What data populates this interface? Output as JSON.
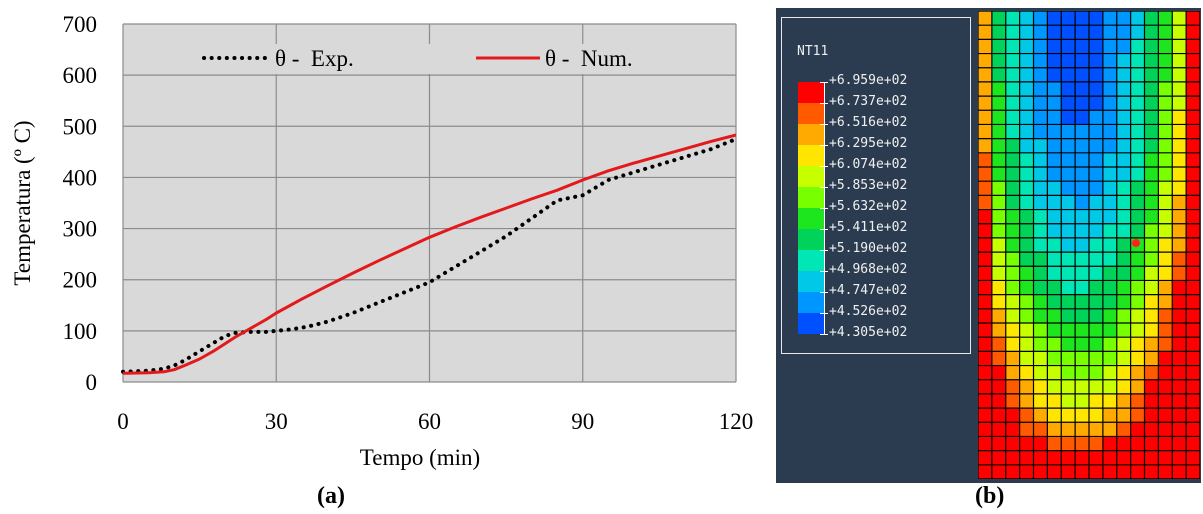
{
  "chart_data": {
    "type": "line",
    "xlabel": "Tempo (min)",
    "ylabel": "Temperatura (º C)",
    "xlim": [
      0,
      120
    ],
    "ylim": [
      0,
      700
    ],
    "x_ticks": [
      "0",
      "30",
      "60",
      "90",
      "120"
    ],
    "y_ticks": [
      "0",
      "100",
      "200",
      "300",
      "400",
      "500",
      "600",
      "700"
    ],
    "grid": true,
    "legend_position": "top",
    "series": [
      {
        "name": "θ -  Exp.",
        "color": "#000000",
        "style": "dotted",
        "x": [
          0,
          5,
          8,
          10,
          12,
          15,
          18,
          20,
          22,
          25,
          28,
          30,
          33,
          36,
          40,
          45,
          50,
          55,
          60,
          65,
          70,
          75,
          80,
          85,
          90,
          95,
          100,
          105,
          110,
          115,
          120
        ],
        "y": [
          20,
          22,
          26,
          32,
          42,
          60,
          78,
          90,
          96,
          98,
          98,
          100,
          103,
          108,
          118,
          135,
          155,
          175,
          195,
          225,
          255,
          285,
          320,
          355,
          365,
          395,
          410,
          425,
          440,
          455,
          475
        ]
      },
      {
        "name": "θ -  Num.",
        "color": "#e31a1c",
        "style": "solid",
        "x": [
          0,
          5,
          8,
          10,
          12,
          15,
          18,
          20,
          22,
          25,
          28,
          30,
          35,
          40,
          45,
          50,
          55,
          60,
          65,
          70,
          75,
          80,
          85,
          90,
          95,
          100,
          105,
          110,
          115,
          120
        ],
        "y": [
          17,
          18,
          20,
          24,
          32,
          45,
          62,
          75,
          88,
          105,
          122,
          135,
          162,
          188,
          213,
          237,
          260,
          283,
          303,
          322,
          340,
          358,
          375,
          395,
          413,
          428,
          442,
          456,
          470,
          483
        ]
      }
    ]
  },
  "panel_a_label": "(a)",
  "panel_b_label": "(b)",
  "contour_legend": {
    "title": "NT11",
    "values": [
      "+6.959e+02",
      "+6.737e+02",
      "+6.516e+02",
      "+6.295e+02",
      "+6.074e+02",
      "+5.853e+02",
      "+5.632e+02",
      "+5.411e+02",
      "+5.190e+02",
      "+4.968e+02",
      "+4.747e+02",
      "+4.526e+02",
      "+4.305e+02"
    ],
    "colors": [
      "#ff0000",
      "#ff5a00",
      "#ffaa00",
      "#ffe600",
      "#c8ff00",
      "#78ff00",
      "#1ee61e",
      "#00d25a",
      "#00e6b4",
      "#00c8e6",
      "#0096ff",
      "#0050ff",
      "#0014e6"
    ]
  }
}
